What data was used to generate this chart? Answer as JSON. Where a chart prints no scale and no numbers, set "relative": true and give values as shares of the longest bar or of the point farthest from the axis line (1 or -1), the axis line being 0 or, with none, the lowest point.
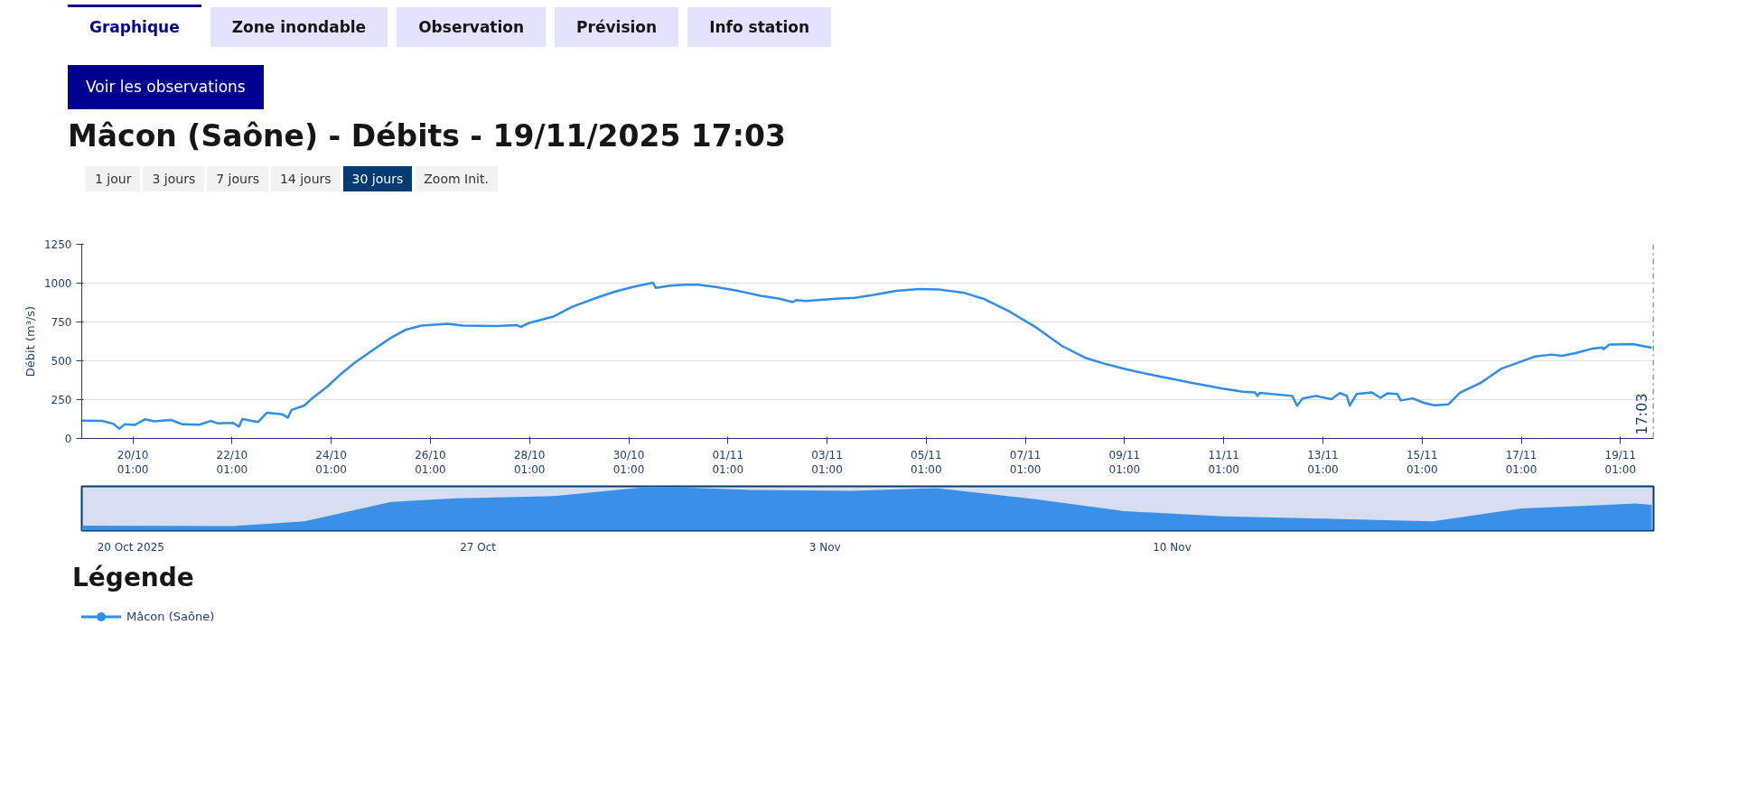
{
  "chart_data": [
    {
      "type": "line",
      "title": "Mâcon (Saône) - Débits - 19/11/2025 17:03",
      "ylabel": "Débit (m³/s)",
      "legend_title": "Légende",
      "annotations": [
        "Graphique",
        "Zone inondable",
        "Observation",
        "Prévision",
        "Info station",
        "Voir les observations",
        "1 jour",
        "3 jours",
        "7 jours",
        "14 jours",
        "30 jours",
        "Zoom Init."
      ],
      "x": [
        "2025-10-19T00:15",
        "2025-10-19T10:00",
        "2025-10-19T15:30",
        "2025-10-19T18:30",
        "2025-10-19T21:00",
        "2025-10-20T02:00",
        "2025-10-20T06:45",
        "2025-10-20T11:20",
        "2025-10-20T19:30",
        "2025-10-21T01:00",
        "2025-10-21T09:10",
        "2025-10-21T14:40",
        "2025-10-21T18:20",
        "2025-10-22T01:30",
        "2025-10-22T04:20",
        "2025-10-22T06:00",
        "2025-10-22T13:30",
        "2025-10-22T18:00",
        "2025-10-23T01:15",
        "2025-10-23T04:00",
        "2025-10-23T05:50",
        "2025-10-23T12:00",
        "2025-10-23T15:50",
        "2025-10-23T23:00",
        "2025-10-24T05:20",
        "2025-10-24T11:50",
        "2025-10-24T21:50",
        "2025-10-25T06:00",
        "2025-10-25T13:15",
        "2025-10-25T20:40",
        "2025-10-26T09:25",
        "2025-10-26T16:30",
        "2025-10-27T09:00",
        "2025-10-27T19:00",
        "2025-10-27T20:40",
        "2025-10-28T01:15",
        "2025-10-28T12:15",
        "2025-10-28T21:40",
        "2025-10-29T10:20",
        "2025-10-29T17:50",
        "2025-10-30T03:00",
        "2025-10-30T12:45",
        "2025-10-30T14:10",
        "2025-10-30T21:10",
        "2025-10-31T04:20",
        "2025-10-31T10:50",
        "2025-10-31T19:00",
        "2025-11-01T06:00",
        "2025-11-01T16:50",
        "2025-11-02T02:00",
        "2025-11-02T08:25",
        "2025-11-02T10:10",
        "2025-11-02T14:40",
        "2025-11-03T05:20",
        "2025-11-03T14:25",
        "2025-11-03T23:35",
        "2025-11-04T10:35",
        "2025-11-04T21:40",
        "2025-11-05T06:45",
        "2025-11-05T19:30",
        "2025-11-06T04:35",
        "2025-11-06T17:20",
        "2025-11-07T06:15",
        "2025-11-07T19:00",
        "2025-11-08T06:00",
        "2025-11-08T15:10",
        "2025-11-09T02:00",
        "2025-11-09T15:40",
        "2025-11-10T03:10",
        "2025-11-10T09:40",
        "2025-11-11T00:30",
        "2025-11-11T10:20",
        "2025-11-11T16:10",
        "2025-11-11T17:20",
        "2025-11-11T18:30",
        "2025-11-12T10:10",
        "2025-11-12T12:30",
        "2025-11-12T15:10",
        "2025-11-12T21:40",
        "2025-11-13T05:05",
        "2025-11-13T09:10",
        "2025-11-13T12:30",
        "2025-11-13T14:00",
        "2025-11-13T17:20",
        "2025-11-14T00:45",
        "2025-11-14T04:50",
        "2025-11-14T08:10",
        "2025-11-14T13:00",
        "2025-11-14T14:40",
        "2025-11-14T20:25",
        "2025-11-15T02:10",
        "2025-11-15T07:00",
        "2025-11-15T13:45",
        "2025-11-15T19:30",
        "2025-11-16T05:20",
        "2025-11-16T15:10",
        "2025-11-17T01:30",
        "2025-11-17T07:30",
        "2025-11-17T15:40",
        "2025-11-17T20:40",
        "2025-11-18T03:10",
        "2025-11-18T11:35",
        "2025-11-18T16:20",
        "2025-11-18T16:50",
        "2025-11-18T19:40",
        "2025-11-19T07:15",
        "2025-11-19T12:00",
        "2025-11-19T16:10"
      ],
      "series": [
        {
          "name": "Mâcon (Saône)",
          "color": "#2f8ee8",
          "values": [
            115,
            113,
            95,
            63,
            91,
            87,
            123,
            110,
            119,
            91,
            89,
            113,
            97,
            100,
            76,
            125,
            106,
            166,
            156,
            134,
            184,
            212,
            259,
            333,
            411,
            482,
            575,
            649,
            701,
            727,
            738,
            727,
            724,
            729,
            718,
            746,
            783,
            848,
            910,
            943,
            975,
            1003,
            969,
            984,
            990,
            990,
            975,
            950,
            919,
            900,
            878,
            891,
            885,
            900,
            906,
            924,
            950,
            962,
            960,
            937,
            900,
            817,
            714,
            593,
            519,
            482,
            445,
            405,
            375,
            358,
            321,
            301,
            296,
            274,
            294,
            274,
            211,
            257,
            274,
            253,
            292,
            275,
            211,
            287,
            296,
            262,
            290,
            287,
            245,
            258,
            228,
            214,
            220,
            296,
            358,
            448,
            498,
            527,
            540,
            532,
            549,
            579,
            586,
            574,
            605,
            608,
            595,
            584
          ]
        }
      ],
      "xlim": [
        "2025-10-19T00:15",
        "2025-11-19T17:03"
      ],
      "xticks": [
        {
          "value": "2025-10-20T01:00",
          "label": "20/10\n01:00"
        },
        {
          "value": "2025-10-22T01:00",
          "label": "22/10\n01:00"
        },
        {
          "value": "2025-10-24T01:00",
          "label": "24/10\n01:00"
        },
        {
          "value": "2025-10-26T01:00",
          "label": "26/10\n01:00"
        },
        {
          "value": "2025-10-28T01:00",
          "label": "28/10\n01:00"
        },
        {
          "value": "2025-10-30T01:00",
          "label": "30/10\n01:00"
        },
        {
          "value": "2025-11-01T01:00",
          "label": "01/11\n01:00"
        },
        {
          "value": "2025-11-03T01:00",
          "label": "03/11\n01:00"
        },
        {
          "value": "2025-11-05T01:00",
          "label": "05/11\n01:00"
        },
        {
          "value": "2025-11-07T01:00",
          "label": "07/11\n01:00"
        },
        {
          "value": "2025-11-09T01:00",
          "label": "09/11\n01:00"
        },
        {
          "value": "2025-11-11T01:00",
          "label": "11/11\n01:00"
        },
        {
          "value": "2025-11-13T01:00",
          "label": "13/11\n01:00"
        },
        {
          "value": "2025-11-15T01:00",
          "label": "15/11\n01:00"
        },
        {
          "value": "2025-11-17T01:00",
          "label": "17/11\n01:00"
        },
        {
          "value": "2025-11-19T01:00",
          "label": "19/11\n01:00"
        }
      ],
      "ylim": [
        0,
        1250
      ],
      "yticks": [
        0,
        250,
        500,
        750,
        1000,
        1250
      ],
      "grid": "y",
      "legend": "bottom",
      "ref_lines": [
        {
          "axis": "x",
          "value": "2025-11-19T17:03",
          "label": "17:03",
          "color": "#1f3f6e",
          "line_style": "dashdot"
        }
      ]
    },
    {
      "type": "area",
      "relative": true,
      "color": "#3a8fe6",
      "x": [
        "2025-10-19T00:15",
        "2025-10-22T01:00",
        "2025-10-23T12:00",
        "2025-10-25T06:00",
        "2025-10-26T13:00",
        "2025-10-28T13:00",
        "2025-10-30T13:00",
        "2025-11-01T13:00",
        "2025-11-03T13:00",
        "2025-11-05T06:00",
        "2025-11-07T06:00",
        "2025-11-09T01:00",
        "2025-11-11T01:00",
        "2025-11-13T01:00",
        "2025-11-15T06:00",
        "2025-11-17T01:00",
        "2025-11-19T08:00",
        "2025-11-19T16:10"
      ],
      "values": [
        0.11,
        0.1,
        0.21,
        0.65,
        0.73,
        0.78,
        1.0,
        0.92,
        0.9,
        0.96,
        0.71,
        0.44,
        0.32,
        0.27,
        0.21,
        0.5,
        0.61,
        0.58
      ],
      "xlim": [
        "2025-10-19T00:15",
        "2025-11-19T17:03"
      ],
      "xticks": [
        {
          "value": "2025-10-20T00:00",
          "label": "20 Oct 2025"
        },
        {
          "value": "2025-10-27T00:00",
          "label": "27 Oct"
        },
        {
          "value": "2025-11-03T00:00",
          "label": "3 Nov"
        },
        {
          "value": "2025-11-10T00:00",
          "label": "10 Nov"
        }
      ]
    }
  ]
}
